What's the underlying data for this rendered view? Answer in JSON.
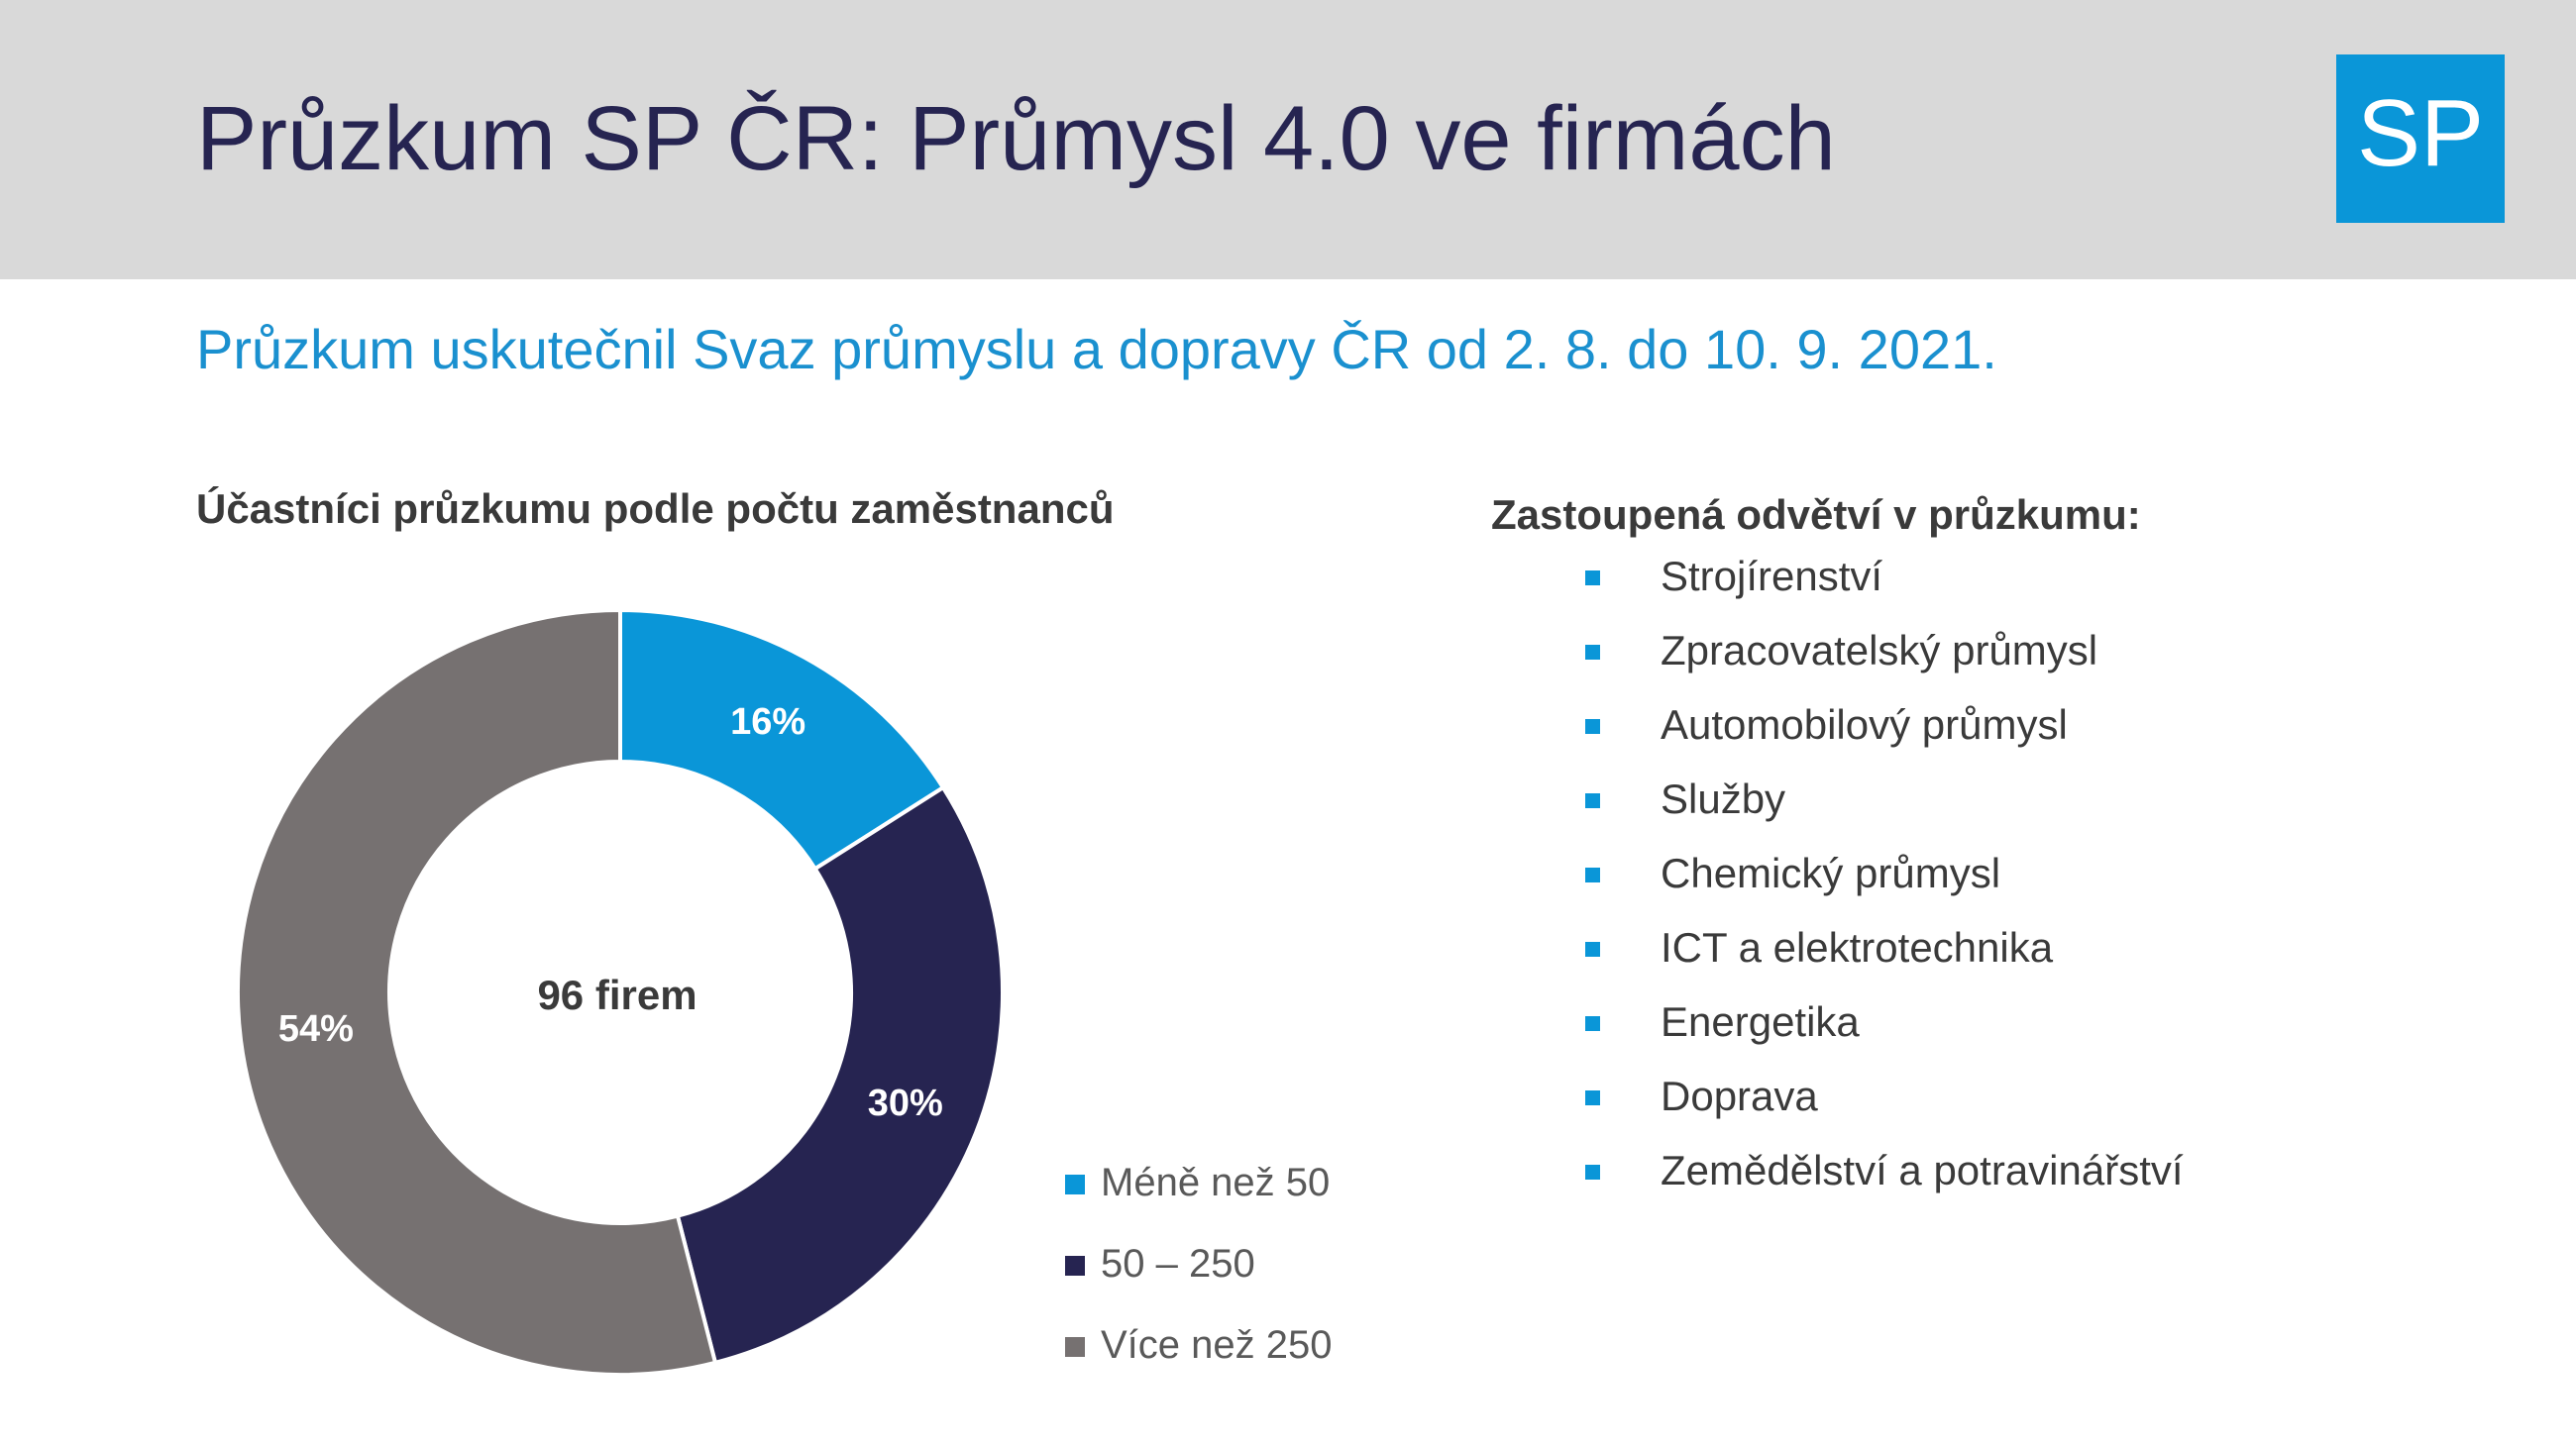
{
  "header": {
    "title": "Průzkum SP ČR: Průmysl 4.0 ve firmách",
    "logo_text": "SP"
  },
  "subtitle": "Průzkum uskutečnil Svaz průmyslu a dopravy ČR od 2. 8. do 10. 9. 2021.",
  "chart_heading": "Účastníci průzkumu podle počtu zaměstnanců",
  "sectors": {
    "heading": "Zastoupená odvětví v průzkumu:",
    "items": [
      "Strojírenství",
      "Zpracovatelský průmysl",
      "Automobilový průmysl",
      "Služby",
      "Chemický průmysl",
      "ICT a elektrotechnika",
      "Energetika",
      "Doprava",
      "Zemědělství a potravinářství"
    ]
  },
  "colors": {
    "accent": "#0a96d8",
    "navy": "#262451",
    "gray": "#767171",
    "header_bg": "#d9d9d9"
  },
  "chart_data": {
    "type": "pie",
    "variant": "donut",
    "center_label": "96 firem",
    "categories": [
      "Méně než 50",
      "50 – 250",
      "Více než 250"
    ],
    "values": [
      16,
      30,
      54
    ],
    "value_labels": [
      "16%",
      "30%",
      "54%"
    ],
    "colors": [
      "#0a96d8",
      "#262451",
      "#767171"
    ],
    "legend_position": "bottom-right"
  }
}
